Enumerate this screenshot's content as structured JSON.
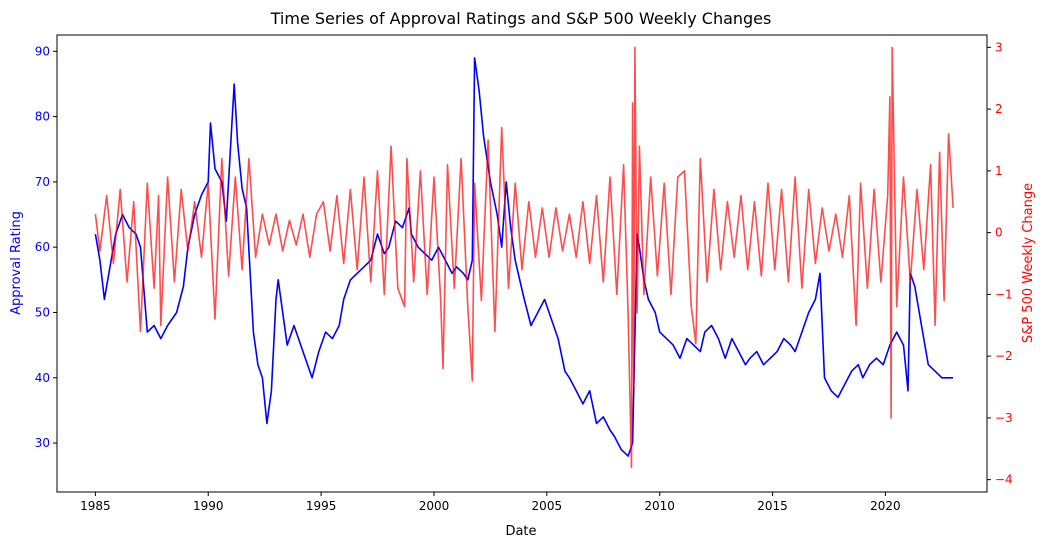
{
  "chart_data": {
    "type": "line",
    "title": "Time Series of Approval Ratings and S&P 500 Weekly Changes",
    "xlabel": "Date",
    "x_range": [
      1983.3,
      2024.5
    ],
    "x_ticks": [
      1985,
      1990,
      1995,
      2000,
      2005,
      2010,
      2015,
      2020
    ],
    "grid": false,
    "left_axis": {
      "label": "Approval Rating",
      "color": "#0000ff",
      "range": [
        22.5,
        92.5
      ],
      "ticks": [
        30,
        40,
        50,
        60,
        70,
        80,
        90
      ]
    },
    "right_axis": {
      "label": "S&P 500 Weekly Change",
      "color": "#ff0000",
      "range": [
        -4.2,
        3.2
      ],
      "ticks": [
        -4,
        -3,
        -2,
        -1,
        0,
        1,
        2,
        3
      ]
    },
    "series": [
      {
        "axis": "left",
        "color": "#0000ff",
        "opacity": 1,
        "x": [
          1985.0,
          1985.2,
          1985.4,
          1985.6,
          1985.9,
          1986.2,
          1986.5,
          1986.8,
          1987.0,
          1987.3,
          1987.6,
          1987.9,
          1988.2,
          1988.6,
          1988.9,
          1989.1,
          1989.4,
          1989.7,
          1990.0,
          1990.1,
          1990.3,
          1990.6,
          1990.8,
          1991.0,
          1991.15,
          1991.3,
          1991.5,
          1991.7,
          1992.0,
          1992.2,
          1992.4,
          1992.6,
          1992.8,
          1993.0,
          1993.1,
          1993.3,
          1993.5,
          1993.8,
          1994.0,
          1994.3,
          1994.6,
          1994.9,
          1995.2,
          1995.5,
          1995.8,
          1996.0,
          1996.3,
          1996.6,
          1996.9,
          1997.2,
          1997.5,
          1997.8,
          1998.0,
          1998.3,
          1998.6,
          1998.9,
          1999.0,
          1999.3,
          1999.6,
          1999.9,
          2000.2,
          2000.5,
          2000.8,
          2001.0,
          2001.3,
          2001.5,
          2001.7,
          2001.8,
          2002.0,
          2002.2,
          2002.5,
          2002.8,
          2003.0,
          2003.2,
          2003.4,
          2003.6,
          2003.8,
          2004.0,
          2004.3,
          2004.6,
          2004.9,
          2005.2,
          2005.5,
          2005.8,
          2006.0,
          2006.3,
          2006.6,
          2006.9,
          2007.2,
          2007.5,
          2007.8,
          2008.0,
          2008.3,
          2008.6,
          2008.8,
          2009.0,
          2009.1,
          2009.3,
          2009.5,
          2009.8,
          2010.0,
          2010.3,
          2010.6,
          2010.9,
          2011.2,
          2011.5,
          2011.8,
          2012.0,
          2012.3,
          2012.6,
          2012.9,
          2013.2,
          2013.5,
          2013.8,
          2014.0,
          2014.3,
          2014.6,
          2014.9,
          2015.2,
          2015.5,
          2015.8,
          2016.0,
          2016.3,
          2016.6,
          2016.9,
          2017.1,
          2017.3,
          2017.6,
          2017.9,
          2018.2,
          2018.5,
          2018.8,
          2019.0,
          2019.3,
          2019.6,
          2019.9,
          2020.2,
          2020.5,
          2020.8,
          2021.0,
          2021.1,
          2021.3,
          2021.6,
          2021.9,
          2022.2,
          2022.5,
          2022.8,
          2023.0
        ],
        "y": [
          62,
          58,
          52,
          56,
          62,
          65,
          63,
          62,
          60,
          47,
          48,
          46,
          48,
          50,
          54,
          60,
          65,
          68,
          70,
          79,
          72,
          70,
          64,
          76,
          85,
          76,
          69,
          66,
          47,
          42,
          40,
          33,
          38,
          52,
          55,
          50,
          45,
          48,
          46,
          43,
          40,
          44,
          47,
          46,
          48,
          52,
          55,
          56,
          57,
          58,
          62,
          59,
          60,
          64,
          63,
          66,
          62,
          60,
          59,
          58,
          60,
          58,
          56,
          57,
          56,
          55,
          58,
          89,
          84,
          77,
          70,
          65,
          60,
          70,
          63,
          58,
          55,
          52,
          48,
          50,
          52,
          49,
          46,
          41,
          40,
          38,
          36,
          38,
          33,
          34,
          32,
          31,
          29,
          28,
          30,
          62,
          60,
          55,
          52,
          50,
          47,
          46,
          45,
          43,
          46,
          45,
          44,
          47,
          48,
          46,
          43,
          46,
          44,
          42,
          43,
          44,
          42,
          43,
          44,
          46,
          45,
          44,
          47,
          50,
          52,
          56,
          40,
          38,
          37,
          39,
          41,
          42,
          40,
          42,
          43,
          42,
          45,
          47,
          45,
          38,
          56,
          54,
          48,
          42,
          41,
          40,
          40,
          40
        ]
      },
      {
        "axis": "right",
        "color": "#ff0000",
        "opacity": 0.7,
        "x": [
          1985.0,
          1985.2,
          1985.5,
          1985.8,
          1986.1,
          1986.4,
          1986.7,
          1987.0,
          1987.3,
          1987.6,
          1987.8,
          1987.9,
          1988.2,
          1988.5,
          1988.8,
          1989.1,
          1989.4,
          1989.7,
          1990.0,
          1990.3,
          1990.6,
          1990.9,
          1991.2,
          1991.5,
          1991.8,
          1992.1,
          1992.4,
          1992.7,
          1993.0,
          1993.3,
          1993.6,
          1993.9,
          1994.2,
          1994.5,
          1994.8,
          1995.1,
          1995.4,
          1995.7,
          1996.0,
          1996.3,
          1996.6,
          1996.9,
          1997.2,
          1997.5,
          1997.8,
          1998.1,
          1998.4,
          1998.7,
          1998.8,
          1999.1,
          1999.4,
          1999.7,
          2000.0,
          2000.3,
          2000.4,
          2000.6,
          2000.9,
          2001.2,
          2001.5,
          2001.7,
          2001.8,
          2002.1,
          2002.4,
          2002.7,
          2003.0,
          2003.3,
          2003.6,
          2003.9,
          2004.2,
          2004.5,
          2004.8,
          2005.1,
          2005.4,
          2005.7,
          2006.0,
          2006.3,
          2006.6,
          2006.9,
          2007.2,
          2007.5,
          2007.8,
          2008.1,
          2008.4,
          2008.6,
          2008.75,
          2008.8,
          2008.85,
          2008.9,
          2009.0,
          2009.1,
          2009.3,
          2009.6,
          2009.9,
          2010.2,
          2010.5,
          2010.8,
          2011.1,
          2011.4,
          2011.6,
          2011.8,
          2012.1,
          2012.4,
          2012.7,
          2013.0,
          2013.3,
          2013.6,
          2013.9,
          2014.2,
          2014.5,
          2014.8,
          2015.1,
          2015.4,
          2015.7,
          2016.0,
          2016.3,
          2016.6,
          2016.9,
          2017.2,
          2017.5,
          2017.8,
          2018.1,
          2018.4,
          2018.7,
          2018.9,
          2019.2,
          2019.5,
          2019.8,
          2020.1,
          2020.2,
          2020.25,
          2020.3,
          2020.5,
          2020.8,
          2021.1,
          2021.4,
          2021.7,
          2022.0,
          2022.2,
          2022.4,
          2022.6,
          2022.8,
          2023.0
        ],
        "y": [
          0.3,
          -0.3,
          0.6,
          -0.5,
          0.7,
          -0.8,
          0.5,
          -1.6,
          0.8,
          -0.9,
          0.6,
          -1.5,
          0.9,
          -0.8,
          0.7,
          -0.3,
          0.5,
          -0.4,
          0.8,
          -1.4,
          1.2,
          -0.7,
          0.9,
          -0.6,
          1.2,
          -0.4,
          0.3,
          -0.2,
          0.3,
          -0.3,
          0.2,
          -0.2,
          0.3,
          -0.4,
          0.3,
          0.5,
          -0.3,
          0.6,
          -0.5,
          0.7,
          -0.6,
          0.9,
          -0.8,
          1.0,
          -1.0,
          1.4,
          -0.9,
          -1.2,
          1.2,
          -0.8,
          1.0,
          -1.0,
          0.9,
          -1.1,
          -2.2,
          1.1,
          -0.9,
          1.2,
          -1.2,
          -2.4,
          0.8,
          -1.1,
          1.5,
          -1.6,
          1.7,
          -0.9,
          0.8,
          -0.6,
          0.5,
          -0.4,
          0.4,
          -0.4,
          0.4,
          -0.3,
          0.3,
          -0.4,
          0.5,
          -0.5,
          0.6,
          -0.8,
          0.9,
          -1.0,
          1.1,
          -1.3,
          -3.8,
          2.1,
          -2.5,
          3.0,
          -1.3,
          1.4,
          -1.0,
          0.9,
          -0.7,
          0.8,
          -1.0,
          0.9,
          1.0,
          -1.2,
          -1.8,
          1.2,
          -0.8,
          0.7,
          -0.6,
          0.5,
          -0.4,
          0.6,
          -0.6,
          0.5,
          -0.7,
          0.8,
          -0.6,
          0.7,
          -0.8,
          0.9,
          -0.9,
          0.7,
          -0.5,
          0.4,
          -0.3,
          0.3,
          -0.4,
          0.6,
          -1.5,
          0.8,
          -0.9,
          0.7,
          -0.8,
          0.6,
          2.2,
          -3.0,
          3.0,
          -1.2,
          0.9,
          -0.8,
          0.7,
          -0.6,
          1.1,
          -1.5,
          1.3,
          -1.1,
          1.6,
          0.4
        ]
      }
    ]
  }
}
